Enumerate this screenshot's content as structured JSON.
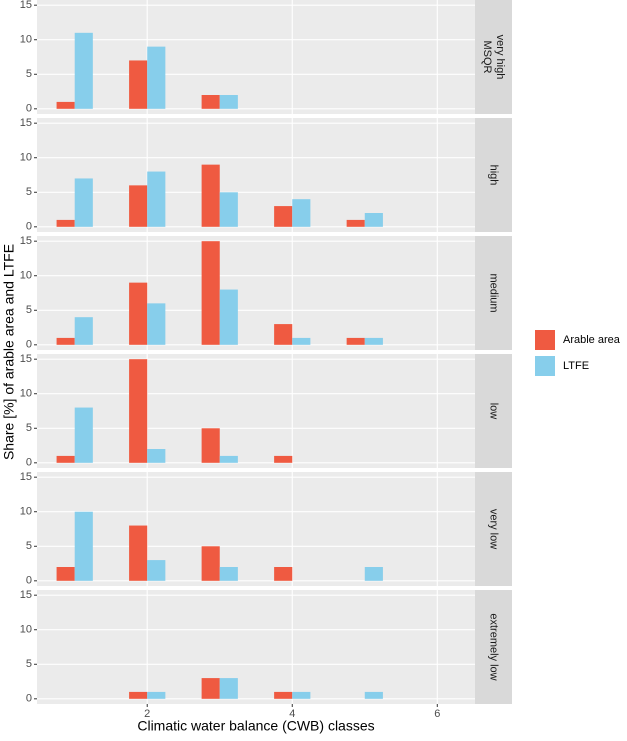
{
  "chart_data": {
    "type": "bar",
    "x_label": "Climatic water balance (CWB) classes",
    "y_label": "Share [%] of arable area and LTFE",
    "x": [
      1,
      2,
      3,
      4,
      5
    ],
    "xlim": [
      0.48,
      6.52
    ],
    "xticks": [
      2,
      4,
      6
    ],
    "ylim": [
      -0.75,
      15.75
    ],
    "yticks": [
      0,
      5,
      10,
      15
    ],
    "grid": true,
    "legend": "right",
    "series": [
      {
        "name": "Arable area",
        "color": "#ef5a41"
      },
      {
        "name": "LTFE",
        "color": "#87ceeb"
      }
    ],
    "facets": [
      {
        "label": [
          "MSQR",
          "very high"
        ],
        "values": [
          [
            1,
            7,
            2,
            null,
            null
          ],
          [
            11,
            9,
            2,
            null,
            null
          ]
        ]
      },
      {
        "label": [
          "high"
        ],
        "values": [
          [
            1,
            6,
            9,
            3,
            1
          ],
          [
            7,
            8,
            5,
            4,
            2
          ]
        ]
      },
      {
        "label": [
          "medium"
        ],
        "values": [
          [
            1,
            9,
            15,
            3,
            1
          ],
          [
            4,
            6,
            8,
            1,
            1
          ]
        ]
      },
      {
        "label": [
          "low"
        ],
        "values": [
          [
            1,
            15,
            5,
            1,
            null
          ],
          [
            8,
            2,
            1,
            null,
            null
          ]
        ]
      },
      {
        "label": [
          "very low"
        ],
        "values": [
          [
            2,
            8,
            5,
            2,
            null
          ],
          [
            10,
            3,
            2,
            null,
            2
          ]
        ]
      },
      {
        "label": [
          "extremely low"
        ],
        "values": [
          [
            null,
            1,
            3,
            1,
            null
          ],
          [
            null,
            1,
            3,
            1,
            1
          ]
        ]
      }
    ]
  }
}
